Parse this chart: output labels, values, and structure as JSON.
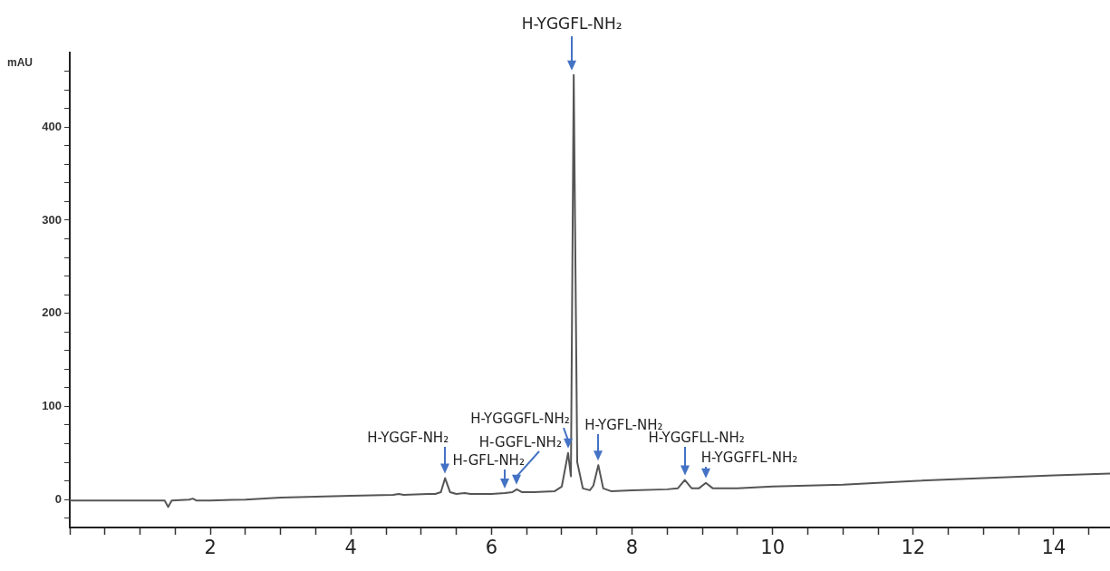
{
  "chart_data": {
    "type": "line",
    "ylabel": "mAU",
    "series": [
      {
        "color": "#555555",
        "x": [
          0,
          0.5,
          1,
          1.35,
          1.4,
          1.45,
          1.7,
          1.75,
          1.8,
          2,
          2.5,
          3,
          3.5,
          4,
          4.6,
          4.68,
          4.75,
          5.1,
          5.2,
          5.28,
          5.34,
          5.41,
          5.5,
          5.62,
          5.7,
          6,
          6.19,
          6.3,
          6.36,
          6.43,
          6.6,
          6.9,
          7.0,
          7.09,
          7.13,
          7.17,
          7.22,
          7.3,
          7.4,
          7.45,
          7.52,
          7.59,
          7.7,
          8,
          8.5,
          8.65,
          8.75,
          8.85,
          8.95,
          9.05,
          9.15,
          9.5,
          10,
          11,
          12,
          13,
          14,
          14.8
        ],
        "values": [
          -1,
          -1,
          -1,
          -1,
          -8,
          -1,
          0,
          1,
          -1,
          -1,
          0,
          2,
          3,
          4,
          5,
          6,
          5,
          6,
          6,
          8,
          23,
          8,
          6,
          7,
          6,
          6,
          7,
          8,
          11,
          8,
          8,
          9,
          14,
          50,
          25,
          456,
          40,
          12,
          10,
          15,
          37,
          12,
          9,
          10,
          11,
          12,
          21,
          12,
          12,
          18,
          12,
          12,
          14,
          16,
          20,
          23,
          26,
          28
        ]
      }
    ],
    "xlim": [
      0,
      14.8
    ],
    "xticks": [
      {
        "value": 0,
        "label": null
      },
      {
        "value": 0.5,
        "label": null
      },
      {
        "value": 1,
        "label": null
      },
      {
        "value": 1.5,
        "label": null
      },
      2,
      {
        "value": 2.5,
        "label": null
      },
      {
        "value": 3,
        "label": null
      },
      {
        "value": 3.5,
        "label": null
      },
      4,
      {
        "value": 4.5,
        "label": null
      },
      {
        "value": 5,
        "label": null
      },
      {
        "value": 5.5,
        "label": null
      },
      6,
      {
        "value": 6.5,
        "label": null
      },
      {
        "value": 7,
        "label": null
      },
      {
        "value": 7.5,
        "label": null
      },
      8,
      {
        "value": 8.5,
        "label": null
      },
      {
        "value": 9,
        "label": null
      },
      {
        "value": 9.5,
        "label": null
      },
      10,
      {
        "value": 10.5,
        "label": null
      },
      {
        "value": 11,
        "label": null
      },
      {
        "value": 11.5,
        "label": null
      },
      12,
      {
        "value": 12.5,
        "label": null
      },
      {
        "value": 13,
        "label": null
      },
      {
        "value": 13.5,
        "label": null
      },
      14,
      {
        "value": 14.5,
        "label": null
      }
    ],
    "ylim": [
      -30,
      480
    ],
    "yticks": [
      {
        "value": -20,
        "label": null
      },
      0,
      {
        "value": 20,
        "label": null
      },
      {
        "value": 40,
        "label": null
      },
      {
        "value": 60,
        "label": null
      },
      {
        "value": 80,
        "label": null
      },
      100,
      {
        "value": 120,
        "label": null
      },
      {
        "value": 140,
        "label": null
      },
      {
        "value": 160,
        "label": null
      },
      {
        "value": 180,
        "label": null
      },
      200,
      {
        "value": 220,
        "label": null
      },
      {
        "value": 240,
        "label": null
      },
      {
        "value": 260,
        "label": null
      },
      {
        "value": 280,
        "label": null
      },
      300,
      {
        "value": 320,
        "label": null
      },
      {
        "value": 340,
        "label": null
      },
      {
        "value": 360,
        "label": null
      },
      {
        "value": 380,
        "label": null
      },
      400,
      {
        "value": 420,
        "label": null
      },
      {
        "value": 440,
        "label": null
      },
      {
        "value": 460,
        "label": null
      }
    ],
    "grid": false,
    "legend": false,
    "marker": "none",
    "line_style": "solid",
    "annotations": [
      {
        "text": "H-YGGF-NH₂",
        "x": 5.34,
        "y": 23
      },
      {
        "text": "H-GFL-NH₂",
        "x": 6.19,
        "y": 7
      },
      {
        "text": "H-GGFL-NH₂",
        "x": 6.36,
        "y": 11
      },
      {
        "text": "H-YGGGFL-NH₂",
        "x": 7.09,
        "y": 50
      },
      {
        "text": "H-YGGFL-NH₂",
        "x": 7.17,
        "y": 456
      },
      {
        "text": "H-YGFL-NH₂",
        "x": 7.52,
        "y": 37
      },
      {
        "text": "H-YGGFLL-NH₂",
        "x": 8.75,
        "y": 21
      },
      {
        "text": "H-YGGFFL-NH₂",
        "x": 9.05,
        "y": 18
      }
    ]
  }
}
